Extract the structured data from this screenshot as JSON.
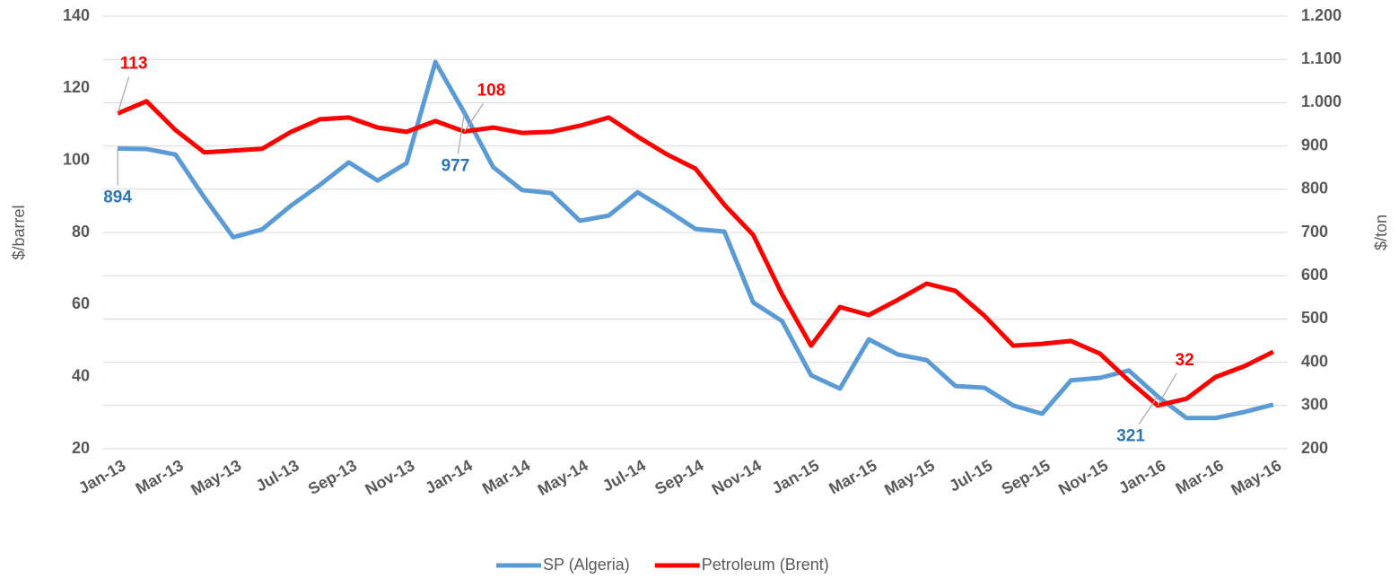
{
  "chart_data": {
    "type": "line",
    "categories": [
      "Jan-13",
      null,
      "Mar-13",
      null,
      "May-13",
      null,
      "Jul-13",
      null,
      "Sep-13",
      null,
      "Nov-13",
      null,
      "Jan-14",
      null,
      "Mar-14",
      null,
      "May-14",
      null,
      "Jul-14",
      null,
      "Sep-14",
      null,
      "Nov-14",
      null,
      "Jan-15",
      null,
      "Mar-15",
      null,
      "May-15",
      null,
      "Jul-15",
      null,
      "Sep-15",
      null,
      "Nov-15",
      null,
      "Jan-16",
      null,
      "Mar-16",
      null,
      "May-16"
    ],
    "series": [
      {
        "name": "SP (Algeria)",
        "color": "#5b9bd5",
        "axis": "y2",
        "values": [
          894,
          893,
          880,
          781,
          689,
          707,
          762,
          810,
          862,
          820,
          860,
          1094,
          977,
          851,
          798,
          791,
          727,
          739,
          793,
          752,
          708,
          702,
          538,
          495,
          370,
          339,
          453,
          418,
          405,
          345,
          341,
          300,
          281,
          358,
          364,
          381,
          321,
          271,
          271,
          285,
          302
        ]
      },
      {
        "name": "Petroleum (Brent)",
        "color": "#ff0000",
        "values": [
          113,
          116.4,
          108.4,
          102.2,
          102.7,
          103.2,
          107.9,
          111.4,
          111.9,
          109.1,
          107.9,
          110.9,
          108,
          109.1,
          107.6,
          107.9,
          109.6,
          111.9,
          106.6,
          101.7,
          97.7,
          87.7,
          79.3,
          62.8,
          48.6,
          59.3,
          57.1,
          61.3,
          65.8,
          63.8,
          56.9,
          48.6,
          49.1,
          49.9,
          46.4,
          38.9,
          32,
          33.9,
          39.9,
          42.9,
          46.9
        ]
      }
    ],
    "ylabel": "$/barrel",
    "y2label": "$/ton",
    "ylim": [
      20,
      140
    ],
    "yticks": [
      20,
      40,
      60,
      80,
      100,
      120,
      140
    ],
    "y2lim": [
      200,
      1200
    ],
    "y2ticks": [
      200,
      300,
      400,
      500,
      600,
      700,
      800,
      900,
      {
        "value": 1000,
        "label": "1.000"
      },
      {
        "value": 1100,
        "label": "1.100"
      },
      {
        "value": 1200,
        "label": "1.200"
      }
    ],
    "grid": true,
    "legend": "bottom"
  }
}
